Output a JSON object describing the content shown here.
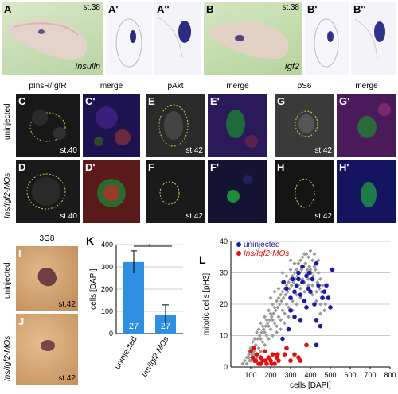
{
  "row1": {
    "A": {
      "label": "A",
      "stage": "st.38",
      "gene": "Insulin"
    },
    "A1": {
      "label": "A'"
    },
    "A2": {
      "label": "A''"
    },
    "B": {
      "label": "B",
      "stage": "st.38",
      "gene": "Igf2"
    },
    "B1": {
      "label": "B'"
    },
    "B2": {
      "label": "B''"
    }
  },
  "row2": {
    "headers": {
      "pinsr": "pInsR/IgfR",
      "merge1": "merge",
      "pakt": "pAkt",
      "merge2": "merge",
      "ps6": "pS6",
      "merge3": "merge"
    },
    "row_labels": {
      "uninjected": "uninjected",
      "mos": "Ins/Igf2-MOs"
    },
    "panels": {
      "C": {
        "label": "C"
      },
      "C1": {
        "label": "C'"
      },
      "D": {
        "label": "D",
        "stage": "st.40"
      },
      "D1": {
        "label": "D'"
      },
      "E": {
        "label": "E"
      },
      "E1": {
        "label": "E'"
      },
      "F": {
        "label": "F",
        "stage": "st.42"
      },
      "F1": {
        "label": "F'"
      },
      "G": {
        "label": "G"
      },
      "G1": {
        "label": "G'"
      },
      "H": {
        "label": "H",
        "stage": "st.42"
      },
      "H1": {
        "label": "H'"
      }
    },
    "stage_C": "st.40",
    "stage_E": "st.42",
    "stage_G": "st.42"
  },
  "row3": {
    "header": "3G8",
    "I": {
      "label": "I",
      "stage": "st.42",
      "row": "uninjected"
    },
    "J": {
      "label": "J",
      "stage": "st.42",
      "row": "Ins/Igf2-MOs"
    }
  },
  "chart_K": {
    "label": "K",
    "chart_data": {
      "type": "bar",
      "categories": [
        "uninjected",
        "Ins/Igf2-MOs"
      ],
      "values": [
        322,
        84
      ],
      "errors": [
        50,
        45
      ],
      "n_labels": [
        "27",
        "27"
      ],
      "ylabel": "cells [DAPI]",
      "ylim": [
        0,
        400
      ],
      "yticks": [
        0,
        100,
        200,
        300,
        400
      ],
      "significance": "*",
      "bar_color": "#2f8fe0"
    }
  },
  "chart_L": {
    "label": "L",
    "chart_data": {
      "type": "scatter",
      "xlabel": "cells [DAPI]",
      "ylabel": "mitotic cells [pH3]",
      "xlim": [
        0,
        800
      ],
      "ylim": [
        0,
        40
      ],
      "xticks": [
        100,
        200,
        300,
        400,
        500,
        600,
        700,
        800
      ],
      "yticks": [
        0,
        10,
        20,
        30,
        40
      ],
      "series": [
        {
          "name": "uninjected",
          "color": "#1a1aa8",
          "points": [
            [
              265,
              27
            ],
            [
              280,
              25
            ],
            [
              300,
              22
            ],
            [
              310,
              28
            ],
            [
              320,
              24
            ],
            [
              330,
              26
            ],
            [
              340,
              30
            ],
            [
              350,
              23
            ],
            [
              360,
              27
            ],
            [
              370,
              21
            ],
            [
              380,
              29
            ],
            [
              390,
              25
            ],
            [
              400,
              24
            ],
            [
              410,
              28
            ],
            [
              420,
              20
            ],
            [
              430,
              33
            ],
            [
              440,
              26
            ],
            [
              460,
              22
            ],
            [
              470,
              24
            ],
            [
              490,
              22
            ],
            [
              500,
              19
            ],
            [
              510,
              31
            ],
            [
              300,
              18
            ],
            [
              320,
              16
            ],
            [
              350,
              15
            ],
            [
              380,
              19
            ],
            [
              430,
              15
            ],
            [
              450,
              13
            ],
            [
              430,
              7
            ],
            [
              290,
              12
            ],
            [
              260,
              9
            ],
            [
              340,
              28
            ],
            [
              360,
              32
            ],
            [
              395,
              30
            ],
            [
              480,
              26
            ]
          ]
        },
        {
          "name": "Ins/Igf2-MOs",
          "color": "#e01010",
          "points": [
            [
              100,
              5
            ],
            [
              110,
              3
            ],
            [
              115,
              6
            ],
            [
              120,
              2
            ],
            [
              130,
              4
            ],
            [
              140,
              1
            ],
            [
              150,
              3
            ],
            [
              160,
              2
            ],
            [
              170,
              5
            ],
            [
              180,
              1
            ],
            [
              190,
              3
            ],
            [
              200,
              2
            ],
            [
              210,
              4
            ],
            [
              220,
              1
            ],
            [
              230,
              3
            ],
            [
              240,
              2
            ],
            [
              270,
              4
            ],
            [
              280,
              6
            ],
            [
              300,
              2
            ],
            [
              320,
              4
            ],
            [
              340,
              3
            ],
            [
              350,
              2
            ],
            [
              380,
              7
            ],
            [
              150,
              1
            ],
            [
              175,
              2
            ],
            [
              205,
              1
            ],
            [
              235,
              4
            ],
            [
              125,
              2
            ]
          ]
        },
        {
          "name": "",
          "color": "#9a9a9a",
          "points": [
            [
              60,
              1
            ],
            [
              70,
              2
            ],
            [
              80,
              3
            ],
            [
              90,
              4
            ],
            [
              100,
              6
            ],
            [
              110,
              8
            ],
            [
              120,
              9
            ],
            [
              130,
              11
            ],
            [
              140,
              12
            ],
            [
              150,
              14
            ],
            [
              160,
              13
            ],
            [
              170,
              16
            ],
            [
              180,
              15
            ],
            [
              190,
              18
            ],
            [
              200,
              17
            ],
            [
              210,
              20
            ],
            [
              220,
              19
            ],
            [
              230,
              21
            ],
            [
              240,
              22
            ],
            [
              250,
              23
            ],
            [
              260,
              24
            ],
            [
              270,
              25
            ],
            [
              280,
              26
            ],
            [
              290,
              27
            ],
            [
              300,
              28
            ],
            [
              310,
              29
            ],
            [
              320,
              30
            ],
            [
              330,
              31
            ],
            [
              340,
              33
            ],
            [
              350,
              34
            ],
            [
              360,
              35
            ],
            [
              370,
              36
            ],
            [
              380,
              36
            ],
            [
              390,
              35
            ],
            [
              400,
              37
            ],
            [
              410,
              34
            ],
            [
              420,
              36
            ],
            [
              430,
              33
            ],
            [
              440,
              30
            ],
            [
              450,
              28
            ],
            [
              460,
              26
            ],
            [
              80,
              1
            ],
            [
              95,
              2
            ],
            [
              105,
              4
            ],
            [
              115,
              5
            ],
            [
              125,
              7
            ],
            [
              135,
              9
            ],
            [
              145,
              10
            ],
            [
              155,
              11
            ],
            [
              165,
              12
            ],
            [
              175,
              13
            ],
            [
              185,
              14
            ],
            [
              195,
              15
            ],
            [
              205,
              16
            ],
            [
              215,
              17
            ],
            [
              225,
              18
            ],
            [
              235,
              19
            ],
            [
              245,
              20
            ],
            [
              255,
              21
            ],
            [
              265,
              22
            ],
            [
              275,
              23
            ],
            [
              285,
              24
            ],
            [
              295,
              25
            ],
            [
              305,
              26
            ],
            [
              315,
              27
            ],
            [
              325,
              28
            ],
            [
              335,
              29
            ],
            [
              345,
              30
            ],
            [
              355,
              31
            ],
            [
              365,
              32
            ],
            [
              375,
              33
            ],
            [
              385,
              31
            ],
            [
              395,
              32
            ],
            [
              405,
              30
            ],
            [
              415,
              29
            ],
            [
              425,
              31
            ],
            [
              435,
              27
            ],
            [
              445,
              25
            ],
            [
              455,
              24
            ],
            [
              465,
              22
            ],
            [
              475,
              20
            ],
            [
              90,
              3
            ],
            [
              100,
              2
            ],
            [
              120,
              4
            ],
            [
              140,
              6
            ],
            [
              160,
              8
            ],
            [
              180,
              10
            ],
            [
              200,
              12
            ],
            [
              220,
              14
            ],
            [
              240,
              16
            ],
            [
              260,
              18
            ],
            [
              280,
              20
            ],
            [
              300,
              22
            ],
            [
              320,
              24
            ],
            [
              340,
              26
            ],
            [
              360,
              28
            ],
            [
              380,
              30
            ],
            [
              400,
              31
            ],
            [
              420,
              32
            ],
            [
              440,
              34
            ],
            [
              200,
              22
            ],
            [
              220,
              24
            ],
            [
              240,
              25
            ],
            [
              260,
              27
            ],
            [
              280,
              29
            ],
            [
              300,
              31
            ],
            [
              320,
              33
            ],
            [
              260,
              30
            ],
            [
              300,
              34
            ],
            [
              150,
              9
            ],
            [
              170,
              11
            ],
            [
              190,
              13
            ],
            [
              210,
              15
            ],
            [
              230,
              13
            ],
            [
              250,
              15
            ],
            [
              270,
              17
            ],
            [
              290,
              19
            ],
            [
              310,
              21
            ],
            [
              330,
              23
            ],
            [
              350,
              25
            ],
            [
              370,
              27
            ],
            [
              390,
              28
            ],
            [
              410,
              26
            ],
            [
              430,
              24
            ],
            [
              450,
              20
            ],
            [
              470,
              18
            ],
            [
              130,
              3
            ],
            [
              150,
              5
            ],
            [
              170,
              7
            ],
            [
              190,
              9
            ],
            [
              210,
              10
            ],
            [
              230,
              11
            ],
            [
              250,
              12
            ],
            [
              270,
              14
            ],
            [
              290,
              16
            ],
            [
              310,
              18
            ],
            [
              330,
              20
            ],
            [
              350,
              22
            ],
            [
              370,
              24
            ],
            [
              390,
              26
            ],
            [
              410,
              23
            ],
            [
              430,
              21
            ],
            [
              450,
              17
            ]
          ]
        }
      ],
      "legend": "top-left"
    }
  }
}
